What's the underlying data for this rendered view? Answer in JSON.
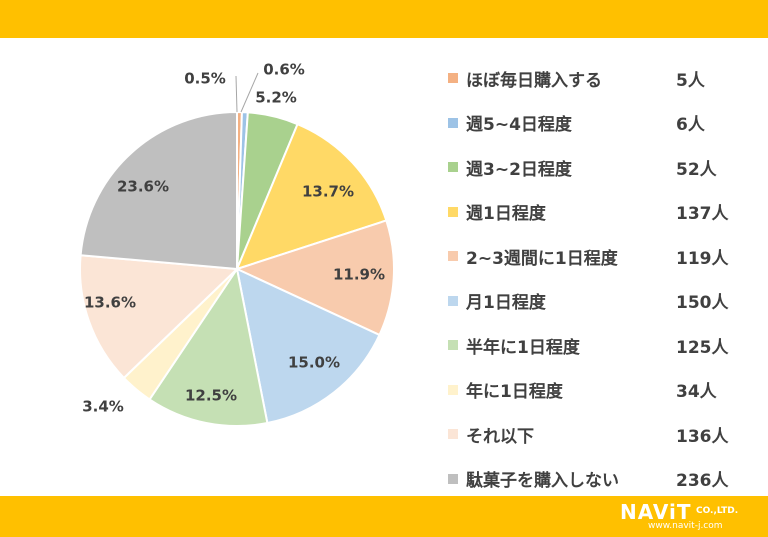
{
  "chart_data": {
    "type": "pie",
    "categories": [
      "ほぼ毎日購入する",
      "週5~4日程度",
      "週3~2日程度",
      "週1日程度",
      "2~3週間に1日程度",
      "月1日程度",
      "半年に1日程度",
      "年に1日程度",
      "それ以下",
      "駄菓子を購入しない"
    ],
    "counts": [
      "5人",
      "6人",
      "52人",
      "137人",
      "119人",
      "150人",
      "125人",
      "34人",
      "136人",
      "236人"
    ],
    "values": [
      0.5,
      0.6,
      5.2,
      13.7,
      11.9,
      15.0,
      12.5,
      3.4,
      13.6,
      23.6
    ],
    "labels": [
      "0.5%",
      "0.6%",
      "5.2%",
      "13.7%",
      "11.9%",
      "15.0%",
      "12.5%",
      "3.4%",
      "13.6%",
      "23.6%"
    ],
    "colors": [
      "#F4B183",
      "#9DC3E6",
      "#A9D18E",
      "#FFD966",
      "#F8CBAD",
      "#BDD7EE",
      "#C5E0B4",
      "#FFF2CC",
      "#FBE5D6",
      "#BFBFBF"
    ],
    "legend_position": "right"
  },
  "logo": {
    "name": "NAViT",
    "suffix": "CO.,LTD.",
    "url": "www.navit-j.com"
  },
  "colors": {
    "frame": "#FFC000"
  }
}
